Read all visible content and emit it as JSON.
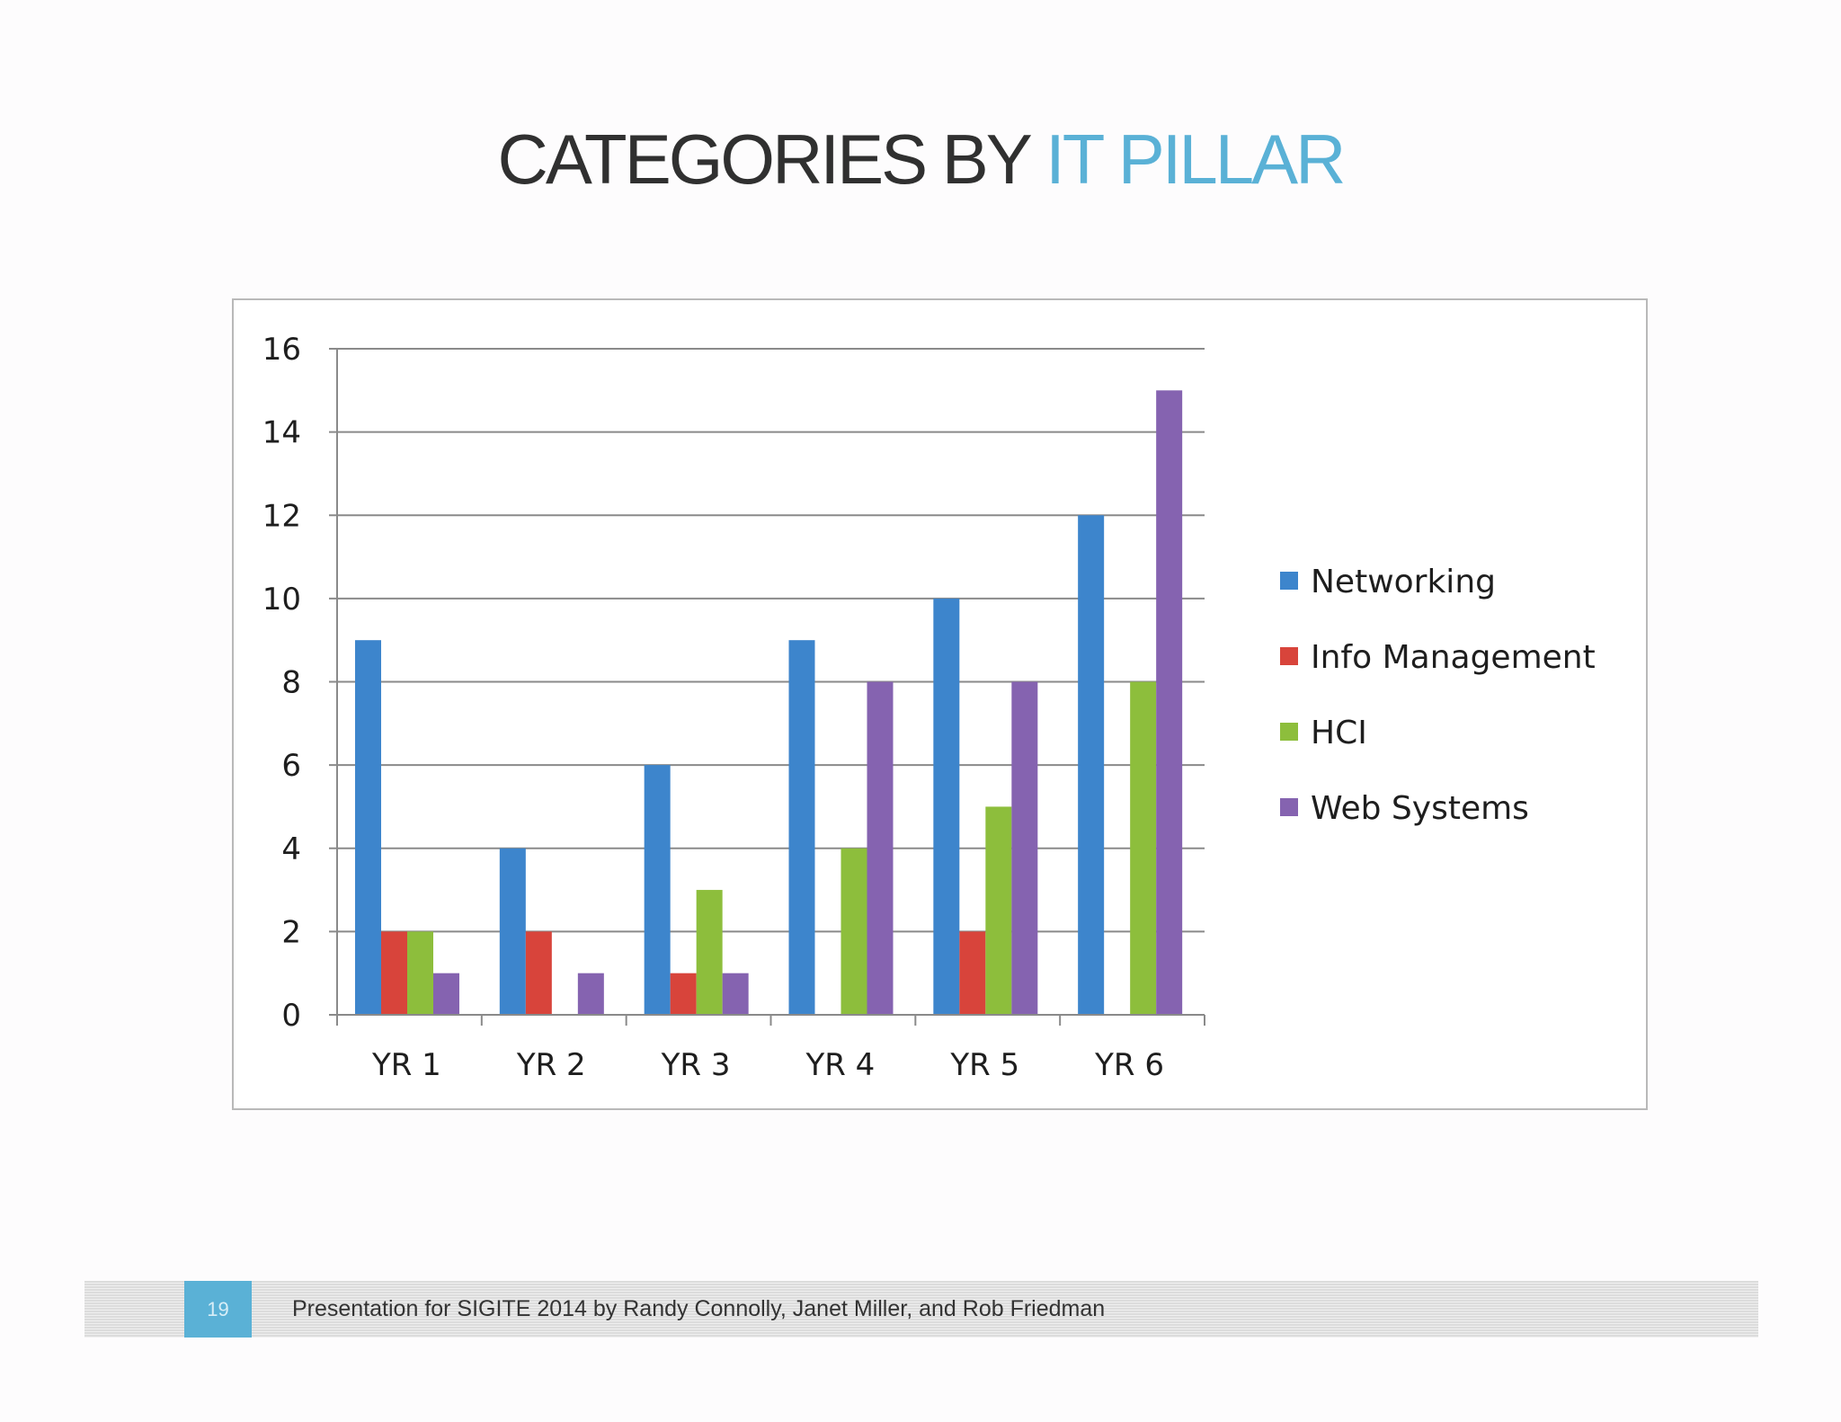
{
  "slide": {
    "title_main": "CATEGORIES BY ",
    "title_accent": "IT PILLAR",
    "page_number": "19",
    "footer_text": "Presentation for SIGITE 2014 by Randy Connolly, Janet Miller, and Rob Friedman",
    "accent_color": "#5ab1d6"
  },
  "chart_data": {
    "type": "bar",
    "categories": [
      "YR 1",
      "YR 2",
      "YR 3",
      "YR 4",
      "YR 5",
      "YR 6"
    ],
    "series": [
      {
        "name": "Networking",
        "color": "#3d85cc",
        "values": [
          9,
          4,
          6,
          9,
          10,
          12
        ]
      },
      {
        "name": "Info Management",
        "color": "#d8443b",
        "values": [
          2,
          2,
          1,
          0,
          2,
          0
        ]
      },
      {
        "name": "HCI",
        "color": "#8dbe3c",
        "values": [
          2,
          0,
          3,
          4,
          5,
          8
        ]
      },
      {
        "name": "Web Systems",
        "color": "#8563b0",
        "values": [
          1,
          1,
          1,
          8,
          8,
          15
        ]
      }
    ],
    "yticks": [
      0,
      2,
      4,
      6,
      8,
      10,
      12,
      14,
      16
    ],
    "ylim": [
      0,
      16
    ],
    "grid": true,
    "legend": "right"
  }
}
